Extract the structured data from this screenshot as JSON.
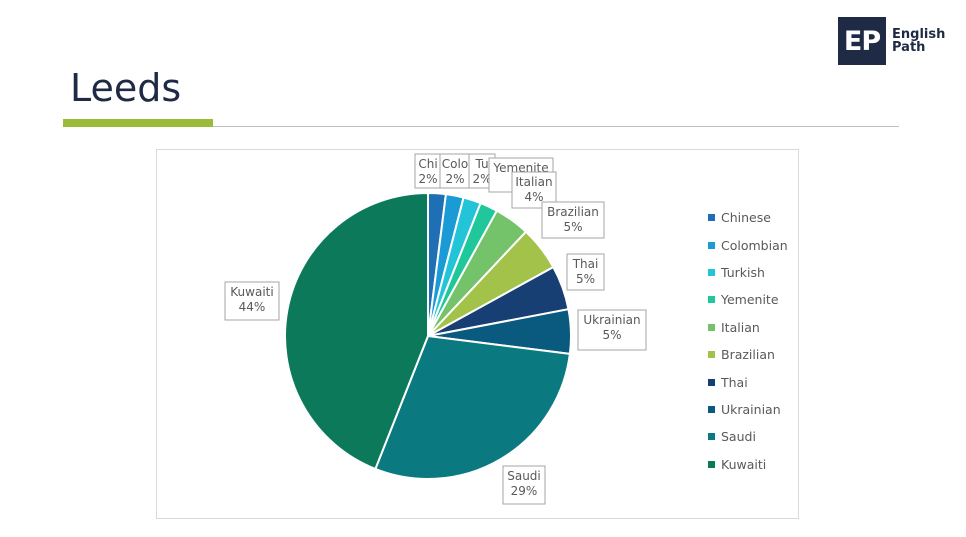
{
  "page": {
    "title": "Leeds",
    "logo": {
      "mark": "EP",
      "line1": "English",
      "line2": "Path"
    }
  },
  "chart_data": {
    "type": "pie",
    "title": "",
    "labels": [
      "Chinese",
      "Colombian",
      "Turkish",
      "Yemenite",
      "Italian",
      "Brazilian",
      "Thai",
      "Ukrainian",
      "Saudi",
      "Kuwaiti"
    ],
    "values": [
      2,
      2,
      2,
      2,
      4,
      5,
      5,
      5,
      29,
      44
    ],
    "data_labels": [
      {
        "name": "Chi",
        "pct": "2%"
      },
      {
        "name": "Colo",
        "pct": "2%"
      },
      {
        "name": "Tu",
        "pct": "2%"
      },
      {
        "name": "Yemenite",
        "pct": "2%"
      },
      {
        "name": "Italian",
        "pct": "4%"
      },
      {
        "name": "Brazilian",
        "pct": "5%"
      },
      {
        "name": "Thai",
        "pct": "5%"
      },
      {
        "name": "Ukrainian",
        "pct": "5%"
      },
      {
        "name": "Saudi",
        "pct": "29%"
      },
      {
        "name": "Kuwaiti",
        "pct": "44%"
      }
    ],
    "colors": [
      "#1f6fb5",
      "#1a9bd6",
      "#23c4d8",
      "#1fc79a",
      "#74c36a",
      "#a3c24a",
      "#173f73",
      "#0a5a80",
      "#0a7a80",
      "#0c7a5a"
    ],
    "start": "top, clockwise",
    "legend_position": "right"
  }
}
